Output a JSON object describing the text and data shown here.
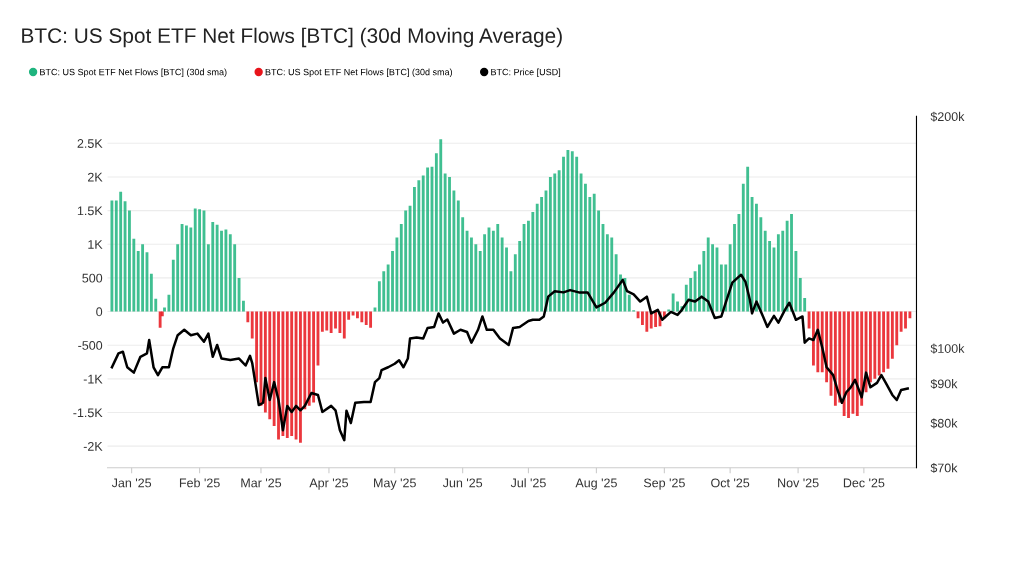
{
  "chart_data": {
    "type": "bar",
    "title": "BTC: US Spot ETF Net Flows [BTC] (30d Moving Average)",
    "xlim": [
      "2024-12-21",
      "2025-12-25"
    ],
    "xticks": [
      {
        "value": "2025-01-01",
        "label": "Jan '25"
      },
      {
        "value": "2025-02-01",
        "label": "Feb '25"
      },
      {
        "value": "2025-03-01",
        "label": "Mar '25"
      },
      {
        "value": "2025-04-01",
        "label": "Apr '25"
      },
      {
        "value": "2025-05-01",
        "label": "May '25"
      },
      {
        "value": "2025-06-01",
        "label": "Jun '25"
      },
      {
        "value": "2025-07-01",
        "label": "Jul '25"
      },
      {
        "value": "2025-08-01",
        "label": "Aug '25"
      },
      {
        "value": "2025-09-01",
        "label": "Sep '25"
      },
      {
        "value": "2025-10-01",
        "label": "Oct '25"
      },
      {
        "value": "2025-11-01",
        "label": "Nov '25"
      },
      {
        "value": "2025-12-01",
        "label": "Dec '25"
      }
    ],
    "ylim": [
      -2320,
      2900
    ],
    "yticks": [
      {
        "value": -2000,
        "label": "-2K"
      },
      {
        "value": -1500,
        "label": "-1.5K"
      },
      {
        "value": -1000,
        "label": "-1K"
      },
      -500,
      0,
      500,
      {
        "value": 1000,
        "label": "1K"
      },
      {
        "value": 1500,
        "label": "1.5K"
      },
      {
        "value": 2000,
        "label": "2K"
      },
      {
        "value": 2500,
        "label": "2.5K"
      }
    ],
    "y2lim": [
      70000,
      200000
    ],
    "y2ticks": [
      {
        "value": 70000,
        "label": "$70k"
      },
      {
        "value": 80000,
        "label": "$80k"
      },
      {
        "value": 90000,
        "label": "$90k"
      },
      {
        "value": 100000,
        "label": "$100k"
      },
      {
        "value": 200000,
        "label": "$200k"
      }
    ],
    "log": "y2",
    "grid": "y",
    "legend": "top left",
    "series": [
      {
        "name": "BTC: US Spot ETF Net Flows [BTC] (30d sma)",
        "color": "#1fb47e",
        "x": [
          "2024-12-23",
          "2024-12-25",
          "2024-12-27",
          "2024-12-29",
          "2024-12-31",
          "2025-01-02",
          "2025-01-04",
          "2025-01-06",
          "2025-01-08",
          "2025-01-10",
          "2025-01-12",
          "2025-01-16",
          "2025-01-18",
          "2025-01-20",
          "2025-01-22",
          "2025-01-24",
          "2025-01-26",
          "2025-01-28",
          "2025-01-30",
          "2025-02-01",
          "2025-02-03",
          "2025-02-05",
          "2025-02-07",
          "2025-02-09",
          "2025-02-11",
          "2025-02-13",
          "2025-02-15",
          "2025-02-17",
          "2025-02-19",
          "2025-02-21",
          "2025-04-22",
          "2025-04-24",
          "2025-04-26",
          "2025-04-28",
          "2025-04-30",
          "2025-05-02",
          "2025-05-04",
          "2025-05-06",
          "2025-05-08",
          "2025-05-10",
          "2025-05-12",
          "2025-05-14",
          "2025-05-16",
          "2025-05-18",
          "2025-05-20",
          "2025-05-22",
          "2025-05-24",
          "2025-05-26",
          "2025-05-28",
          "2025-05-30",
          "2025-06-01",
          "2025-06-03",
          "2025-06-05",
          "2025-06-07",
          "2025-06-09",
          "2025-06-11",
          "2025-06-13",
          "2025-06-15",
          "2025-06-17",
          "2025-06-19",
          "2025-06-21",
          "2025-06-23",
          "2025-06-25",
          "2025-06-27",
          "2025-06-29",
          "2025-07-01",
          "2025-07-03",
          "2025-07-05",
          "2025-07-07",
          "2025-07-09",
          "2025-07-11",
          "2025-07-13",
          "2025-07-15",
          "2025-07-17",
          "2025-07-19",
          "2025-07-21",
          "2025-07-23",
          "2025-07-25",
          "2025-07-27",
          "2025-07-29",
          "2025-07-31",
          "2025-08-02",
          "2025-08-04",
          "2025-08-06",
          "2025-08-08",
          "2025-08-10",
          "2025-08-12",
          "2025-08-14",
          "2025-08-16",
          "2025-08-18",
          "2025-09-03",
          "2025-09-05",
          "2025-09-07",
          "2025-09-09",
          "2025-09-11",
          "2025-09-13",
          "2025-09-15",
          "2025-09-17",
          "2025-09-19",
          "2025-09-21",
          "2025-09-23",
          "2025-09-25",
          "2025-09-27",
          "2025-09-29",
          "2025-10-01",
          "2025-10-03",
          "2025-10-05",
          "2025-10-07",
          "2025-10-09",
          "2025-10-11",
          "2025-10-13",
          "2025-10-15",
          "2025-10-17",
          "2025-10-19",
          "2025-10-21",
          "2025-10-23",
          "2025-10-25",
          "2025-10-27",
          "2025-10-29",
          "2025-10-31",
          "2025-11-02",
          "2025-11-04"
        ],
        "values": [
          1650,
          1650,
          1780,
          1640,
          1500,
          1080,
          900,
          1000,
          880,
          560,
          190,
          60,
          250,
          770,
          1000,
          1300,
          1280,
          1250,
          1530,
          1520,
          1500,
          1000,
          1330,
          1290,
          1200,
          1220,
          1150,
          1000,
          500,
          160,
          60,
          450,
          600,
          700,
          900,
          1100,
          1300,
          1500,
          1570,
          1850,
          1950,
          2020,
          2140,
          2150,
          2350,
          2560,
          2050,
          2000,
          1800,
          1650,
          1400,
          1200,
          1100,
          1000,
          900,
          1150,
          1250,
          1200,
          1300,
          1100,
          950,
          600,
          850,
          1050,
          1300,
          1350,
          1480,
          1600,
          1700,
          1800,
          2000,
          2050,
          2100,
          2300,
          2400,
          2380,
          2300,
          2050,
          1900,
          1700,
          1750,
          1500,
          1300,
          1150,
          1100,
          850,
          550,
          500,
          250,
          20,
          30,
          270,
          150,
          80,
          400,
          500,
          600,
          700,
          900,
          1100,
          1000,
          950,
          700,
          700,
          1000,
          1300,
          1450,
          1900,
          2150,
          1700,
          1600,
          1400,
          1200,
          1050,
          950,
          1150,
          1200,
          1350,
          1450,
          900,
          500,
          200
        ]
      },
      {
        "name": "BTC: US Spot ETF Net Flows [BTC] (30d sma)",
        "color": "#e8141b",
        "x": [
          "2025-01-14",
          "2025-01-15",
          "2025-02-23",
          "2025-02-25",
          "2025-02-27",
          "2025-03-01",
          "2025-03-03",
          "2025-03-05",
          "2025-03-07",
          "2025-03-09",
          "2025-03-11",
          "2025-03-13",
          "2025-03-15",
          "2025-03-17",
          "2025-03-19",
          "2025-03-21",
          "2025-03-23",
          "2025-03-25",
          "2025-03-27",
          "2025-03-29",
          "2025-03-31",
          "2025-04-02",
          "2025-04-04",
          "2025-04-06",
          "2025-04-08",
          "2025-04-10",
          "2025-04-12",
          "2025-04-14",
          "2025-04-16",
          "2025-04-18",
          "2025-04-20",
          "2025-08-20",
          "2025-08-22",
          "2025-08-24",
          "2025-08-26",
          "2025-08-28",
          "2025-08-30",
          "2025-09-01",
          "2025-11-06",
          "2025-11-08",
          "2025-11-10",
          "2025-11-12",
          "2025-11-14",
          "2025-11-16",
          "2025-11-18",
          "2025-11-20",
          "2025-11-22",
          "2025-11-24",
          "2025-11-26",
          "2025-11-28",
          "2025-11-30",
          "2025-12-02",
          "2025-12-04",
          "2025-12-06",
          "2025-12-08",
          "2025-12-10",
          "2025-12-12",
          "2025-12-14",
          "2025-12-16",
          "2025-12-18",
          "2025-12-20",
          "2025-12-22"
        ],
        "values": [
          -240,
          -70,
          -160,
          -400,
          -1050,
          -1400,
          -1500,
          -1600,
          -1700,
          -1900,
          -1850,
          -1880,
          -1850,
          -1900,
          -1950,
          -1450,
          -1400,
          -1350,
          -800,
          -300,
          -280,
          -320,
          -250,
          -320,
          -400,
          -120,
          -60,
          -100,
          -160,
          -200,
          -240,
          -100,
          -200,
          -300,
          -250,
          -230,
          -220,
          -100,
          -250,
          -800,
          -900,
          -900,
          -1050,
          -1250,
          -1400,
          -1350,
          -1550,
          -1580,
          -1520,
          -1550,
          -1400,
          -1200,
          -1050,
          -1000,
          -950,
          -900,
          -850,
          -700,
          -500,
          -300,
          -250,
          -100
        ]
      },
      {
        "name": "BTC: Price [USD]",
        "color": "#000000",
        "type": "line",
        "axis": "y2",
        "x": [
          "2024-12-23",
          "2024-12-26",
          "2024-12-28",
          "2024-12-30",
          "2025-01-02",
          "2025-01-05",
          "2025-01-08",
          "2025-01-09",
          "2025-01-11",
          "2025-01-13",
          "2025-01-15",
          "2025-01-18",
          "2025-01-20",
          "2025-01-22",
          "2025-01-25",
          "2025-01-28",
          "2025-01-31",
          "2025-02-03",
          "2025-02-05",
          "2025-02-07",
          "2025-02-09",
          "2025-02-11",
          "2025-02-15",
          "2025-02-19",
          "2025-02-22",
          "2025-02-24",
          "2025-02-25",
          "2025-02-26",
          "2025-02-28",
          "2025-03-02",
          "2025-03-03",
          "2025-03-05",
          "2025-03-07",
          "2025-03-09",
          "2025-03-11",
          "2025-03-13",
          "2025-03-15",
          "2025-03-17",
          "2025-03-19",
          "2025-03-21",
          "2025-03-24",
          "2025-03-27",
          "2025-03-29",
          "2025-04-02",
          "2025-04-04",
          "2025-04-06",
          "2025-04-08",
          "2025-04-09",
          "2025-04-11",
          "2025-04-13",
          "2025-04-17",
          "2025-04-20",
          "2025-04-22",
          "2025-04-24",
          "2025-04-25",
          "2025-04-28",
          "2025-05-01",
          "2025-05-03",
          "2025-05-05",
          "2025-05-07",
          "2025-05-08",
          "2025-05-11",
          "2025-05-14",
          "2025-05-16",
          "2025-05-19",
          "2025-05-21",
          "2025-05-23",
          "2025-05-25",
          "2025-05-28",
          "2025-05-31",
          "2025-06-03",
          "2025-06-05",
          "2025-06-08",
          "2025-06-10",
          "2025-06-12",
          "2025-06-15",
          "2025-06-18",
          "2025-06-22",
          "2025-06-24",
          "2025-06-27",
          "2025-07-01",
          "2025-07-03",
          "2025-07-06",
          "2025-07-08",
          "2025-07-10",
          "2025-07-13",
          "2025-07-17",
          "2025-07-20",
          "2025-07-24",
          "2025-07-28",
          "2025-08-01",
          "2025-08-05",
          "2025-08-09",
          "2025-08-13",
          "2025-08-15",
          "2025-08-18",
          "2025-08-21",
          "2025-08-24",
          "2025-08-26",
          "2025-08-29",
          "2025-08-31",
          "2025-09-04",
          "2025-09-07",
          "2025-09-09",
          "2025-09-12",
          "2025-09-15",
          "2025-09-18",
          "2025-09-21",
          "2025-09-24",
          "2025-09-27",
          "2025-09-29",
          "2025-10-02",
          "2025-10-05",
          "2025-10-06",
          "2025-10-08",
          "2025-10-10",
          "2025-10-11",
          "2025-10-13",
          "2025-10-16",
          "2025-10-18",
          "2025-10-21",
          "2025-10-23",
          "2025-10-26",
          "2025-10-28",
          "2025-10-31",
          "2025-11-03",
          "2025-11-04",
          "2025-11-06",
          "2025-11-08",
          "2025-11-10",
          "2025-11-12",
          "2025-11-14",
          "2025-11-17",
          "2025-11-19",
          "2025-11-21",
          "2025-11-23",
          "2025-11-25",
          "2025-11-27",
          "2025-11-30",
          "2025-12-02",
          "2025-12-04",
          "2025-12-07",
          "2025-12-09",
          "2025-12-11",
          "2025-12-14",
          "2025-12-16",
          "2025-12-18",
          "2025-12-21"
        ],
        "values": [
          94500,
          98500,
          99000,
          94500,
          93000,
          97500,
          98500,
          102500,
          94500,
          92300,
          94500,
          94500,
          100000,
          104000,
          105700,
          104000,
          104500,
          102000,
          104500,
          97500,
          101000,
          97000,
          96600,
          97000,
          95000,
          97800,
          95700,
          91800,
          84400,
          85000,
          91500,
          85700,
          90400,
          85700,
          78300,
          84200,
          82700,
          84200,
          83100,
          84200,
          87500,
          87000,
          82700,
          84200,
          83100,
          78300,
          76000,
          83000,
          80000,
          85000,
          85200,
          85200,
          90400,
          91500,
          93700,
          94500,
          95500,
          96500,
          94500,
          97000,
          103000,
          103300,
          103000,
          106300,
          106600,
          111000,
          108000,
          109000,
          104500,
          105700,
          105000,
          101700,
          105700,
          110000,
          105700,
          105700,
          103000,
          101000,
          106300,
          106600,
          108500,
          108900,
          108900,
          110000,
          116700,
          118600,
          118200,
          119000,
          118200,
          118200,
          113000,
          114600,
          118200,
          122700,
          118600,
          117500,
          115000,
          116700,
          111000,
          112200,
          108900,
          111500,
          110500,
          112200,
          115600,
          115000,
          116700,
          115000,
          109500,
          110000,
          114600,
          121700,
          123900,
          124600,
          122000,
          115600,
          111000,
          115000,
          110000,
          106600,
          110200,
          108000,
          112200,
          114600,
          108900,
          110000,
          101700,
          103000,
          102500,
          105700,
          100300,
          94500,
          92300,
          88300,
          85000,
          87700,
          89000,
          91000,
          86400,
          93000,
          89000,
          90200,
          92300,
          90200,
          87000,
          85700,
          88300,
          88700
        ]
      }
    ]
  }
}
